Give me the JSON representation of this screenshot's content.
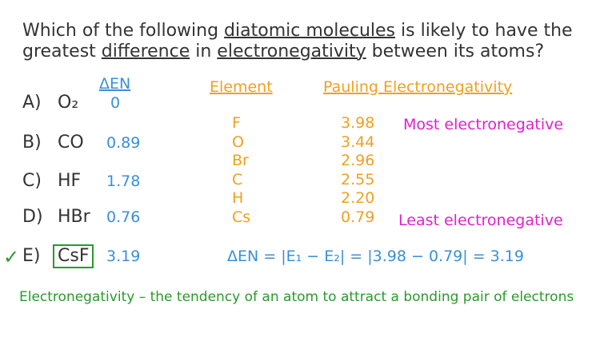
{
  "question": {
    "lines": [
      [
        {
          "text": "Which of the following ",
          "underline": false
        },
        {
          "text": "diatomic molecules",
          "underline": true
        },
        {
          "text": " is likely to have the",
          "underline": false
        }
      ],
      [
        {
          "text": "greatest ",
          "underline": false
        },
        {
          "text": "difference",
          "underline": true
        },
        {
          "text": " in ",
          "underline": false
        },
        {
          "text": "electronegativity",
          "underline": true
        },
        {
          "text": " between its atoms?",
          "underline": false
        }
      ]
    ]
  },
  "options": {
    "header": "ΔEN",
    "rows": [
      {
        "letter": "A)",
        "formula": "O₂",
        "den": "0"
      },
      {
        "letter": "B)",
        "formula": "CO",
        "den": "0.89"
      },
      {
        "letter": "C)",
        "formula": "HF",
        "den": "1.78"
      },
      {
        "letter": "D)",
        "formula": "HBr",
        "den": "0.76"
      },
      {
        "letter": "E)",
        "formula": "CsF",
        "den": "3.19",
        "check": "✓"
      }
    ]
  },
  "table": {
    "headers": [
      "Element",
      "Pauling Electronegativity"
    ],
    "rows": [
      [
        "F",
        "3.98"
      ],
      [
        "O",
        "3.44"
      ],
      [
        "Br",
        "2.96"
      ],
      [
        "C",
        "2.55"
      ],
      [
        "H",
        "2.20"
      ],
      [
        "Cs",
        "0.79"
      ]
    ],
    "most": "Most electronegative",
    "least": "Least electronegative"
  },
  "formula": "ΔEN = |E₁ − E₂| = |3.98 − 0.79| = 3.19",
  "definition": "Electronegativity – the tendency of an atom to attract a bonding pair of electrons"
}
